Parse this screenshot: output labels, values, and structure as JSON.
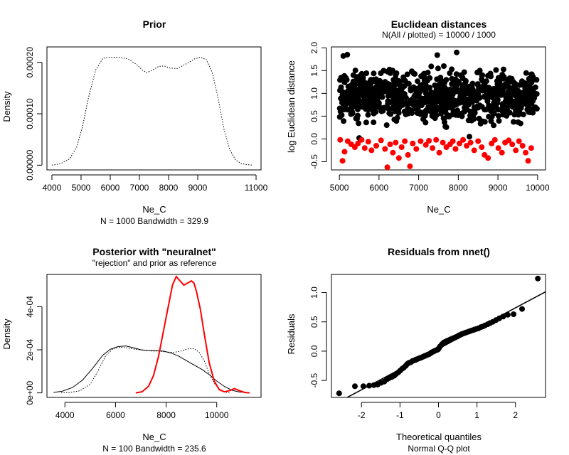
{
  "chart_data": [
    {
      "type": "line",
      "title": "Prior",
      "subtitle": "",
      "xlabel": "Ne_C",
      "sub_xlabel": "N = 1000   Bandwidth = 329.9",
      "ylabel": "Density",
      "xlim": [
        3830,
        11170
      ],
      "ylim": [
        -9.2e-06,
        0.00023
      ],
      "xticks": [
        4000,
        5000,
        6000,
        7000,
        8000,
        9000,
        11000
      ],
      "xticklabels": [
        "4000",
        "5000",
        "6000",
        "7000",
        "8000",
        "9000",
        "11000"
      ],
      "yticks": [
        0.0,
        0.0001,
        0.0002
      ],
      "yticklabels": [
        "0.00000",
        "0.00010",
        "0.00020"
      ],
      "series": [
        {
          "line_style": "dotted",
          "color": "#000000",
          "x": [
            4000,
            4300,
            4600,
            4850,
            5050,
            5250,
            5500,
            5750,
            6000,
            6300,
            6600,
            6900,
            7100,
            7250,
            7450,
            7650,
            7850,
            8050,
            8300,
            8600,
            8900,
            9100,
            9300,
            9500,
            9700,
            9900,
            10100,
            10300,
            10500,
            10700,
            10900
          ],
          "y": [
            0.0,
            3e-06,
            1.2e-05,
            3.5e-05,
            7.5e-05,
            0.00013,
            0.000185,
            0.000208,
            0.00021,
            0.00021,
            0.000207,
            0.000196,
            0.000185,
            0.00018,
            0.000185,
            0.000192,
            0.000193,
            0.000189,
            0.000188,
            0.000197,
            0.000207,
            0.00021,
            0.000205,
            0.00018,
            0.00013,
            7e-05,
            3e-05,
            1e-05,
            3e-06,
            1e-06,
            0.0
          ]
        }
      ]
    },
    {
      "type": "scatter",
      "title": "Euclidean distances",
      "subtitle": "N(All / plotted) =  10000 / 1000",
      "xlabel": "Ne_C",
      "ylabel": "log Euclidean distance",
      "xlim": [
        4800,
        10200
      ],
      "ylim": [
        -0.68,
        2.02
      ],
      "xticks": [
        5000,
        6000,
        7000,
        8000,
        9000,
        10000
      ],
      "xticklabels": [
        "5000",
        "6000",
        "7000",
        "8000",
        "9000",
        "10000"
      ],
      "yticks": [
        -0.5,
        0.0,
        0.5,
        1.0,
        1.5,
        2.0
      ],
      "yticklabels": [
        "-0.5",
        "0.0",
        "0.5",
        "1.0",
        "1.5",
        "2.0"
      ],
      "series": [
        {
          "color": "#000000",
          "x_range": [
            5000,
            10000
          ],
          "y_range": [
            0.0,
            1.9
          ],
          "count": 900,
          "extremes": [
            [
              5100,
              1.82
            ],
            [
              5200,
              1.85
            ],
            [
              7960,
              1.9
            ],
            [
              7470,
              1.84
            ],
            [
              5500,
              0.02
            ],
            [
              8280,
              0.05
            ]
          ]
        },
        {
          "color": "#ff0000",
          "x": [
            5020,
            5080,
            5130,
            5210,
            5300,
            5390,
            5470,
            5560,
            5640,
            5730,
            5810,
            5930,
            6050,
            6150,
            6210,
            6280,
            6350,
            6420,
            6500,
            6570,
            6650,
            6730,
            6780,
            6850,
            6940,
            7050,
            7180,
            7260,
            7350,
            7440,
            7520,
            7610,
            7700,
            7790,
            7860,
            7930,
            8030,
            8120,
            8210,
            8310,
            8400,
            8500,
            8590,
            8660,
            8750,
            8840,
            8920,
            9010,
            9100,
            9180,
            9270,
            9360,
            9450,
            9530,
            9620,
            9700,
            9760,
            9840
          ],
          "y": [
            -0.02,
            -0.48,
            -0.28,
            -0.05,
            -0.12,
            -0.18,
            -0.1,
            -0.02,
            -0.2,
            -0.06,
            -0.25,
            -0.15,
            -0.03,
            -0.22,
            -0.62,
            -0.12,
            -0.3,
            -0.08,
            -0.42,
            -0.18,
            -0.05,
            -0.35,
            -0.6,
            -0.1,
            -0.22,
            -0.05,
            -0.13,
            -0.04,
            -0.2,
            -0.02,
            -0.3,
            -0.08,
            -0.18,
            -0.12,
            -0.05,
            -0.22,
            -0.1,
            -0.02,
            -0.15,
            -0.08,
            -0.25,
            -0.05,
            -0.18,
            -0.35,
            -0.42,
            -0.1,
            -0.02,
            -0.2,
            -0.3,
            -0.08,
            -0.03,
            -0.12,
            -0.25,
            -0.05,
            -0.15,
            -0.3,
            -0.48,
            -0.2
          ]
        }
      ]
    },
    {
      "type": "line",
      "title": "Posterior with \"neuralnet\"",
      "subtitle": "\"rejection\" and prior as reference",
      "xlabel": "Ne_C",
      "sub_xlabel": "N = 100   Bandwidth = 235.6",
      "ylabel": "Density",
      "xlim": [
        3290,
        11750
      ],
      "ylim": [
        -2.1e-05,
        0.00055
      ],
      "xticks": [
        4000,
        6000,
        8000,
        10000
      ],
      "xticklabels": [
        "4000",
        "6000",
        "8000",
        "10000"
      ],
      "yticks": [
        0,
        0.0002,
        0.0004
      ],
      "yticklabels": [
        "0e+00",
        "2e-04",
        "4e-04"
      ],
      "series": [
        {
          "line_style": "dotted",
          "color": "#000000",
          "x": [
            3850,
            4200,
            4600,
            5000,
            5300,
            5600,
            5900,
            6200,
            6500,
            6800,
            7100,
            7400,
            7700,
            8000,
            8300,
            8600,
            8900,
            9100,
            9300,
            9500,
            9700,
            9900,
            10100,
            10300,
            10500
          ],
          "y": [
            0.0,
            2e-06,
            1e-05,
            4e-05,
            0.0001,
            0.00017,
            0.000205,
            0.000212,
            0.000208,
            0.000202,
            0.000198,
            0.000195,
            0.000194,
            0.00019,
            0.000188,
            0.000195,
            0.000205,
            0.000205,
            0.00019,
            0.00015,
            9e-05,
            4.5e-05,
            1.8e-05,
            5e-06,
            0.0
          ]
        },
        {
          "line_style": "solid",
          "color": "#000000",
          "x": [
            3550,
            3900,
            4300,
            4700,
            5100,
            5500,
            5800,
            6100,
            6400,
            6700,
            7000,
            7300,
            7600,
            7900,
            8200,
            8500,
            8800,
            9100,
            9400,
            9700,
            10000,
            10300,
            10600,
            10900,
            11200
          ],
          "y": [
            2e-06,
            8e-06,
            2.5e-05,
            6e-05,
            0.000115,
            0.000175,
            0.000203,
            0.000215,
            0.000218,
            0.00021,
            0.0002,
            0.000197,
            0.000196,
            0.000194,
            0.000185,
            0.00017,
            0.00015,
            0.00013,
            0.00011,
            8.5e-05,
            5.5e-05,
            3e-05,
            1.2e-05,
            4e-06,
            1e-06
          ]
        },
        {
          "line_style": "solid",
          "color": "#ff0000",
          "x": [
            6800,
            7050,
            7300,
            7500,
            7700,
            7900,
            8100,
            8250,
            8400,
            8550,
            8700,
            8850,
            9000,
            9100,
            9200,
            9350,
            9500,
            9700,
            9900,
            10100,
            10300,
            10500,
            10700,
            10900,
            11100,
            11300
          ],
          "y": [
            0.0,
            5e-06,
            3e-05,
            8e-05,
            0.00017,
            0.00029,
            0.00041,
            0.0005,
            0.00054,
            0.00052,
            0.0005,
            0.00051,
            0.00052,
            0.00051,
            0.00047,
            0.00039,
            0.00028,
            0.00014,
            5.5e-05,
            1.5e-05,
            5e-06,
            1e-05,
            2e-05,
            1e-05,
            2e-06,
            0.0
          ]
        }
      ]
    },
    {
      "type": "scatter",
      "title": "Residuals from nnet()",
      "subtitle": "",
      "xlabel": "Theoretical quantiles",
      "sub_xlabel": "Normal Q-Q plot",
      "ylabel": "Residuals",
      "xlim": [
        -2.78,
        2.78
      ],
      "ylim": [
        -0.79,
        1.31
      ],
      "xticks": [
        -2,
        -1,
        0,
        1,
        2
      ],
      "xticklabels": [
        "-2",
        "-1",
        "0",
        "1",
        "2"
      ],
      "yticks": [
        -0.5,
        0.0,
        0.5,
        1.0
      ],
      "yticklabels": [
        "-0.5",
        "0.0",
        "0.5",
        "1.0"
      ],
      "series": [
        {
          "color": "#000000",
          "x": [
            -2.58,
            -2.17,
            -1.95,
            -1.8,
            -1.68,
            -1.58,
            -1.49,
            -1.41,
            -1.34,
            -1.28,
            -1.21,
            -1.15,
            -1.1,
            -1.04,
            -0.99,
            -0.94,
            -0.9,
            -0.85,
            -0.81,
            -0.77,
            -0.72,
            -0.68,
            -0.64,
            -0.6,
            -0.57,
            -0.53,
            -0.49,
            -0.45,
            -0.42,
            -0.38,
            -0.35,
            -0.31,
            -0.28,
            -0.24,
            -0.21,
            -0.18,
            -0.14,
            -0.11,
            -0.08,
            -0.04,
            -0.01,
            0.01,
            0.04,
            0.08,
            0.11,
            0.14,
            0.18,
            0.21,
            0.24,
            0.28,
            0.31,
            0.35,
            0.38,
            0.42,
            0.45,
            0.49,
            0.53,
            0.57,
            0.6,
            0.64,
            0.68,
            0.72,
            0.77,
            0.81,
            0.85,
            0.9,
            0.94,
            0.99,
            1.04,
            1.1,
            1.15,
            1.21,
            1.28,
            1.34,
            1.41,
            1.49,
            1.58,
            1.68,
            1.8,
            1.95,
            2.17,
            2.58
          ],
          "y": [
            -0.72,
            -0.6,
            -0.6,
            -0.59,
            -0.58,
            -0.57,
            -0.54,
            -0.52,
            -0.48,
            -0.46,
            -0.44,
            -0.42,
            -0.39,
            -0.36,
            -0.33,
            -0.3,
            -0.28,
            -0.25,
            -0.22,
            -0.2,
            -0.19,
            -0.17,
            -0.16,
            -0.15,
            -0.14,
            -0.13,
            -0.12,
            -0.11,
            -0.1,
            -0.09,
            -0.08,
            -0.07,
            -0.06,
            -0.05,
            -0.04,
            -0.02,
            -0.01,
            0.0,
            0.01,
            0.02,
            0.03,
            0.05,
            0.08,
            0.11,
            0.13,
            0.15,
            0.16,
            0.17,
            0.18,
            0.19,
            0.2,
            0.21,
            0.22,
            0.23,
            0.24,
            0.25,
            0.27,
            0.28,
            0.29,
            0.3,
            0.31,
            0.32,
            0.33,
            0.34,
            0.35,
            0.36,
            0.37,
            0.38,
            0.39,
            0.41,
            0.42,
            0.44,
            0.46,
            0.48,
            0.5,
            0.53,
            0.56,
            0.59,
            0.62,
            0.63,
            0.72,
            1.24
          ]
        }
      ],
      "reference_line": {
        "intercept": 0.04,
        "slope": 0.35
      }
    }
  ]
}
